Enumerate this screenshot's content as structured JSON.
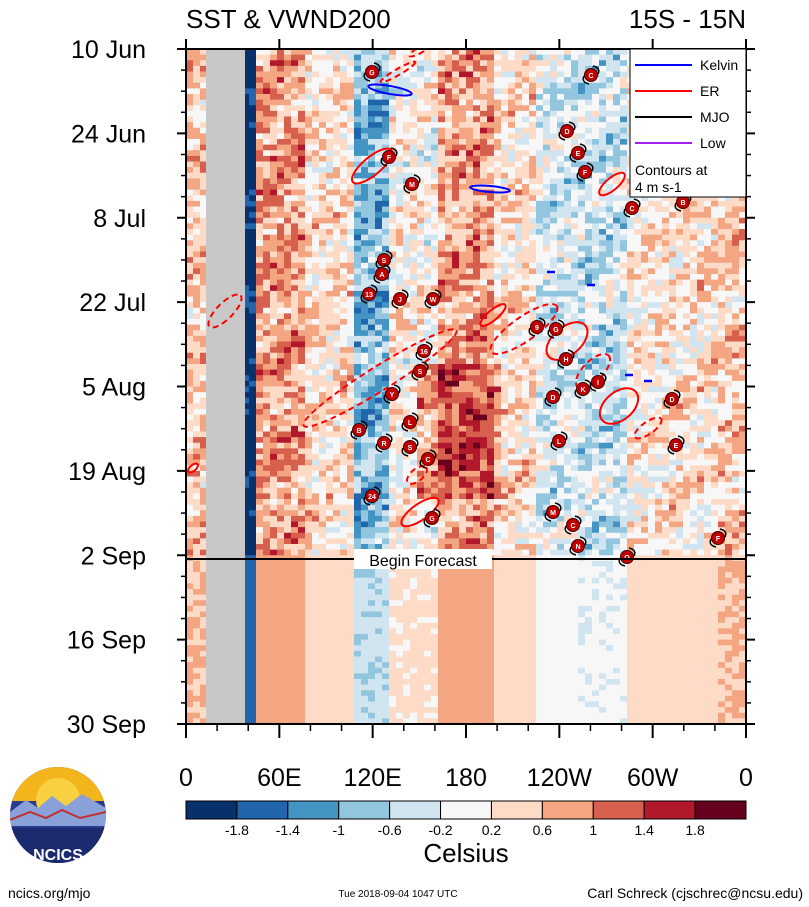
{
  "chart_data": {
    "type": "heatmap",
    "title_left": "SST & VWND200",
    "title_right": "15S - 15N",
    "y_ticks": [
      "10 Jun",
      "24 Jun",
      "8 Jul",
      "22 Jul",
      "5 Aug",
      "19 Aug",
      "2 Sep",
      "16 Sep",
      "30 Sep"
    ],
    "x_ticks": [
      "0",
      "60E",
      "120E",
      "180",
      "120W",
      "60W",
      "0"
    ],
    "x_range_deg": [
      0,
      360
    ],
    "forecast_label": "Begin Forecast",
    "forecast_tick_index": 6,
    "colorbar": {
      "label": "Celsius",
      "tick_labels": [
        "-1.8",
        "-1.4",
        "-1",
        "-0.6",
        "-0.2",
        "0.2",
        "0.6",
        "1",
        "1.4",
        "1.8"
      ],
      "colors": [
        "#08306b",
        "#2166ac",
        "#4393c3",
        "#92c5de",
        "#d1e5f0",
        "#f7f7f7",
        "#fddbc7",
        "#f4a582",
        "#d6604d",
        "#b2182b",
        "#67001f"
      ]
    },
    "legend": {
      "entries": [
        {
          "name": "Kelvin",
          "color": "#0000ff"
        },
        {
          "name": "ER",
          "color": "#ff0000"
        },
        {
          "name": "MJO",
          "color": "#000000"
        },
        {
          "name": "Low",
          "color": "#a020f0"
        }
      ],
      "note_line1": "Contours at",
      "note_line2": "4 m s-1"
    },
    "storm_letters": [
      "G",
      "C",
      "D",
      "E",
      "F",
      "F",
      "M",
      "C",
      "B",
      "S",
      "A",
      "13",
      "J",
      "W",
      "9",
      "G",
      "H",
      "16",
      "S",
      "Y",
      "K",
      "D",
      "I",
      "D",
      "L",
      "B",
      "R",
      "S",
      "C",
      "E",
      "L",
      "24",
      "M",
      "C",
      "N",
      "O",
      "G",
      "F"
    ]
  },
  "footer": {
    "site": "ncics.org/mjo",
    "timestamp": "Tue 2018-09-04 1047 UTC",
    "author": "Carl Schreck (cjschrec@ncsu.edu)",
    "logo_text": "NCICS"
  }
}
